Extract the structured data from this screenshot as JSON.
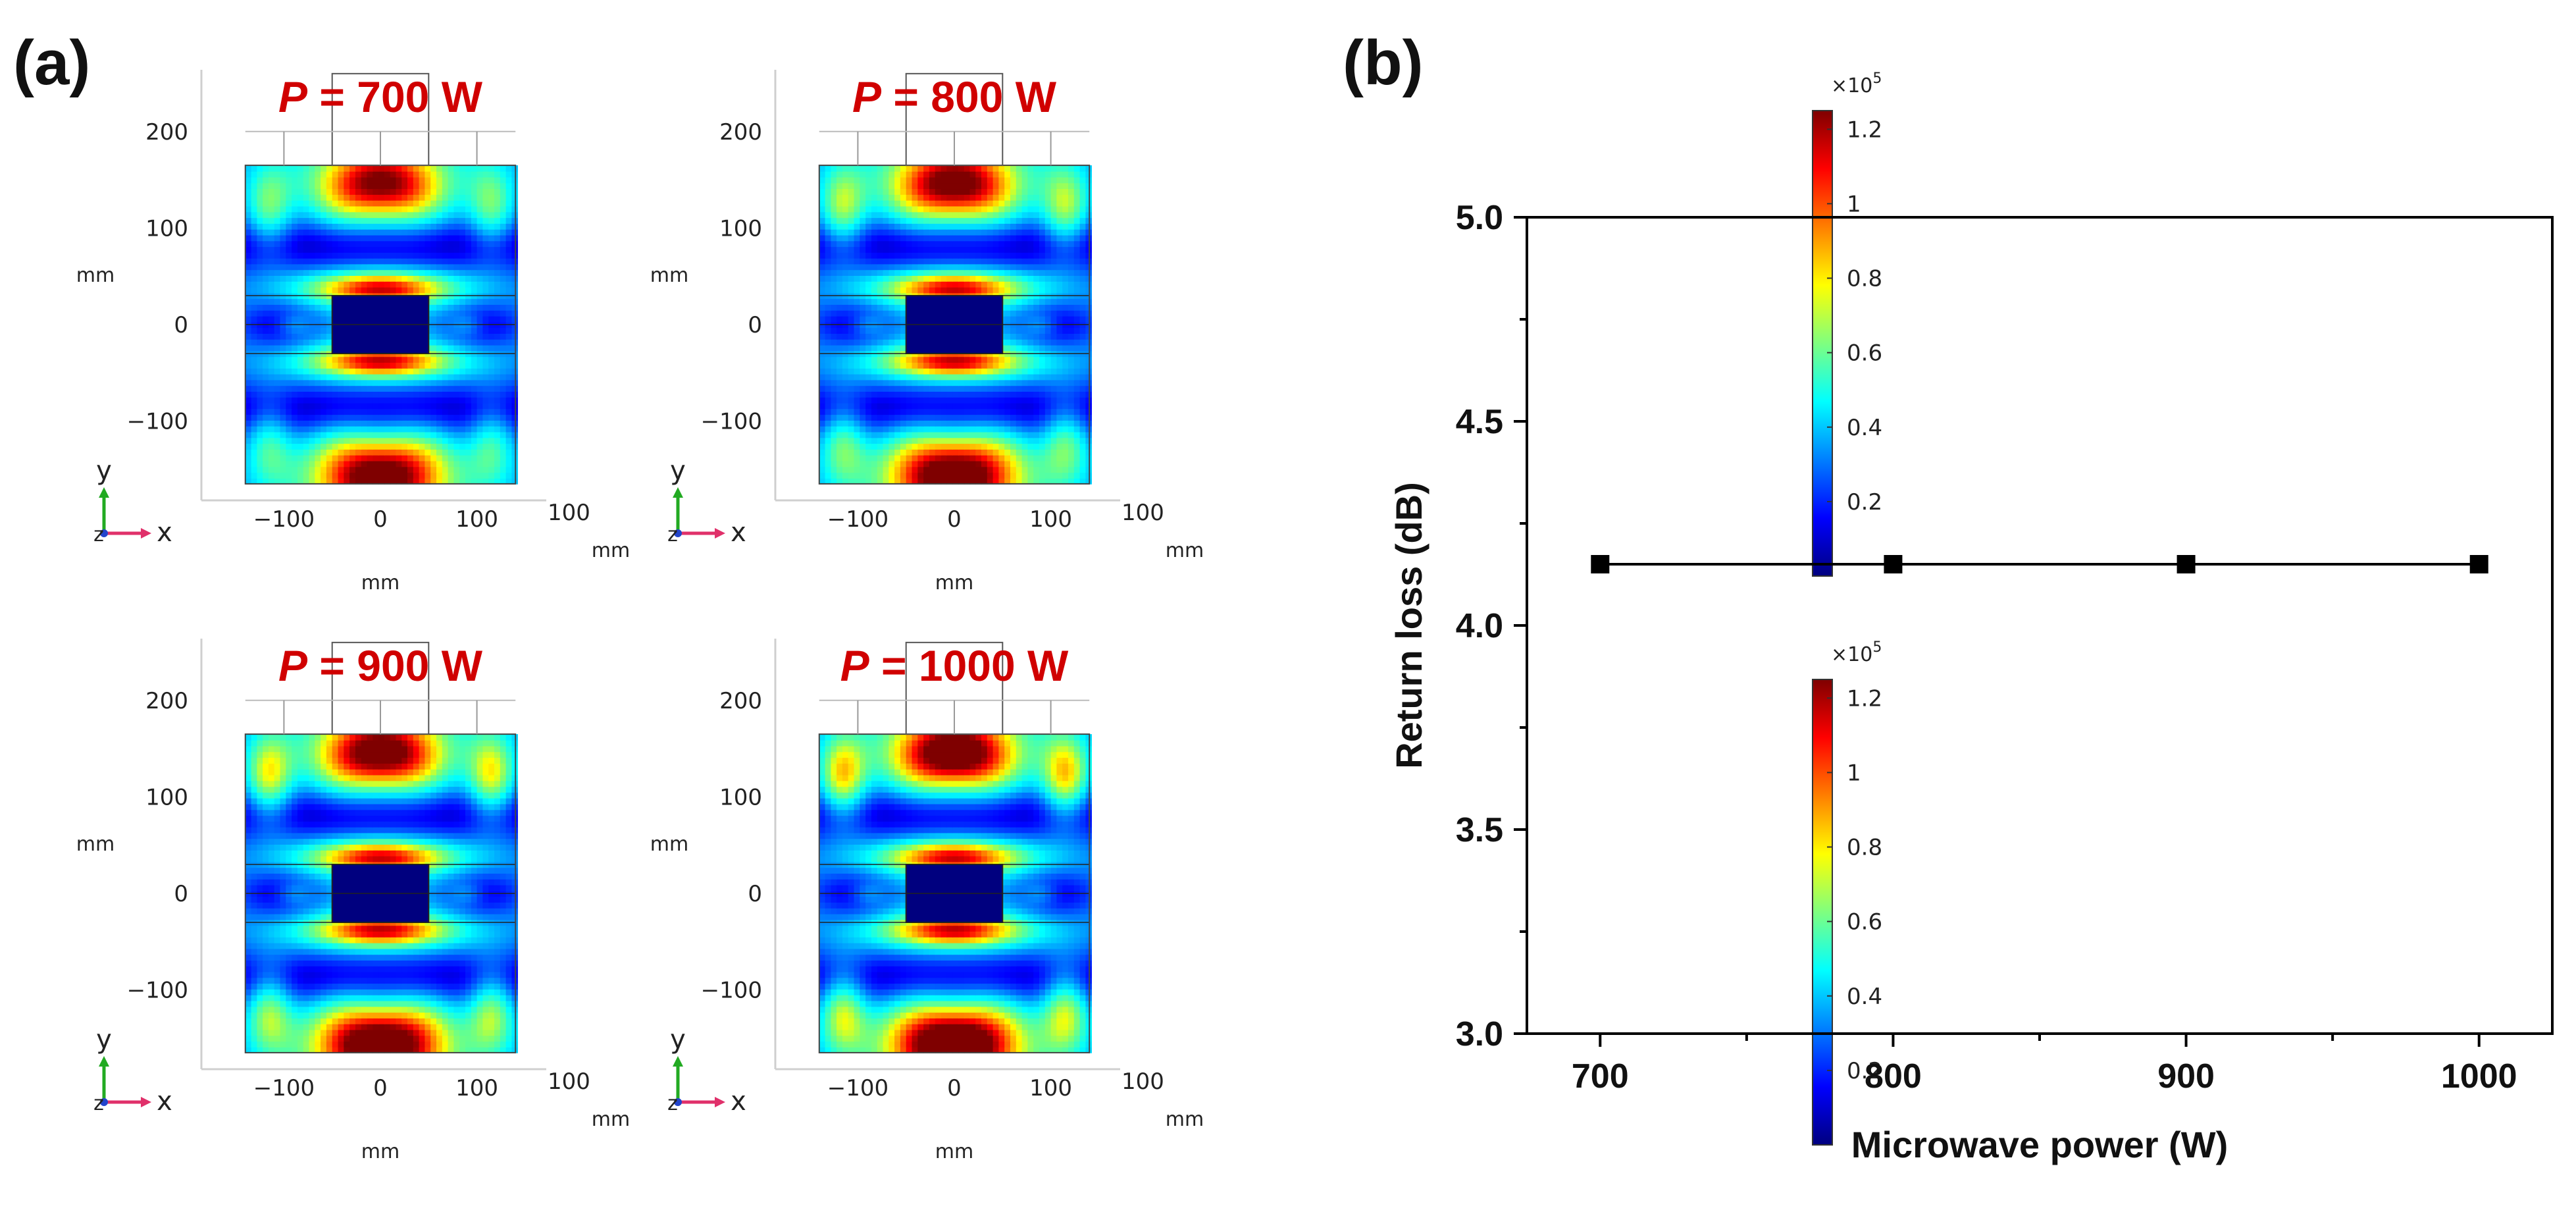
{
  "panel_a_label": "(a)",
  "panel_b_label": "(b)",
  "colors": {
    "title_red": "#d00000",
    "jet": [
      "#00007f",
      "#0000ff",
      "#007fff",
      "#00ffff",
      "#7fff7f",
      "#ffff00",
      "#ff7f00",
      "#ff0000",
      "#7f0000"
    ],
    "marker": "#000000"
  },
  "chart_data": [
    {
      "type": "heatmap",
      "title_var": "P",
      "title_rest": " = 700 W",
      "power_w": 700,
      "xlabel": "mm",
      "ylabel": "mm",
      "x_ticks": [
        "−100",
        "0",
        "100"
      ],
      "x_tick_values": [
        -100,
        0,
        100
      ],
      "y_ticks": [
        "200",
        "100",
        "0",
        "−100"
      ],
      "y_tick_values": [
        200,
        100,
        0,
        -100
      ],
      "xlim": [
        -170,
        170
      ],
      "ylim": [
        -165,
        265
      ],
      "x_extra": "100",
      "axis_y": "y",
      "axis_x": "x",
      "axis_z": "z",
      "hotspot_strength": 0.92,
      "side_strength": 0.52
    },
    {
      "type": "heatmap",
      "title_var": "P",
      "title_rest": " = 800 W",
      "power_w": 800,
      "xlabel": "mm",
      "ylabel": "mm",
      "x_ticks": [
        "−100",
        "0",
        "100"
      ],
      "x_tick_values": [
        -100,
        0,
        100
      ],
      "y_ticks": [
        "200",
        "100",
        "0",
        "−100"
      ],
      "y_tick_values": [
        200,
        100,
        0,
        -100
      ],
      "xlim": [
        -170,
        170
      ],
      "ylim": [
        -165,
        265
      ],
      "x_extra": "100",
      "axis_y": "y",
      "axis_x": "x",
      "axis_z": "z",
      "hotspot_strength": 0.97,
      "side_strength": 0.6,
      "colorbar": {
        "exponent_label": "×10",
        "exponent": "5",
        "ticks": [
          "1.2",
          "1",
          "0.8",
          "0.6",
          "0.4",
          "0.2"
        ],
        "tick_values": [
          1.2,
          1,
          0.8,
          0.6,
          0.4,
          0.2
        ],
        "range": [
          0,
          1.25
        ]
      }
    },
    {
      "type": "heatmap",
      "title_var": "P",
      "title_rest": " = 900 W",
      "power_w": 900,
      "xlabel": "mm",
      "ylabel": "mm",
      "x_ticks": [
        "−100",
        "0",
        "100"
      ],
      "x_tick_values": [
        -100,
        0,
        100
      ],
      "y_ticks": [
        "200",
        "100",
        "0",
        "−100"
      ],
      "y_tick_values": [
        200,
        100,
        0,
        -100
      ],
      "xlim": [
        -170,
        170
      ],
      "ylim": [
        -165,
        265
      ],
      "x_extra": "100",
      "axis_y": "y",
      "axis_x": "x",
      "axis_z": "z",
      "hotspot_strength": 1.0,
      "side_strength": 0.68
    },
    {
      "type": "heatmap",
      "title_var": "P",
      "title_rest": " = 1000 W",
      "power_w": 1000,
      "xlabel": "mm",
      "ylabel": "mm",
      "x_ticks": [
        "−100",
        "0",
        "100"
      ],
      "x_tick_values": [
        -100,
        0,
        100
      ],
      "y_ticks": [
        "200",
        "100",
        "0",
        "−100"
      ],
      "y_tick_values": [
        200,
        100,
        0,
        -100
      ],
      "xlim": [
        -170,
        170
      ],
      "ylim": [
        -165,
        265
      ],
      "x_extra": "100",
      "axis_y": "y",
      "axis_x": "x",
      "axis_z": "z",
      "hotspot_strength": 1.05,
      "side_strength": 0.74,
      "colorbar": {
        "exponent_label": "×10",
        "exponent": "5",
        "ticks": [
          "1.2",
          "1",
          "0.8",
          "0.6",
          "0.4",
          "0.2"
        ],
        "tick_values": [
          1.2,
          1,
          0.8,
          0.6,
          0.4,
          0.2
        ],
        "range": [
          0,
          1.25
        ]
      }
    },
    {
      "type": "line",
      "xlabel": "Microwave power (W)",
      "ylabel": "Return loss (dB)",
      "x": [
        700,
        800,
        900,
        1000
      ],
      "y": [
        4.15,
        4.15,
        4.15,
        4.15
      ],
      "xlim": [
        675,
        1025
      ],
      "ylim": [
        3.0,
        5.0
      ],
      "x_ticks": [
        "700",
        "800",
        "900",
        "1000"
      ],
      "x_tick_values": [
        700,
        800,
        900,
        1000
      ],
      "x_minor": [
        750,
        850,
        950
      ],
      "y_ticks": [
        "3.0",
        "3.5",
        "4.0",
        "4.5",
        "5.0"
      ],
      "y_tick_values": [
        3.0,
        3.5,
        4.0,
        4.5,
        5.0
      ],
      "y_minor": [
        3.25,
        3.75,
        4.25,
        4.75
      ],
      "marker": "square"
    }
  ]
}
